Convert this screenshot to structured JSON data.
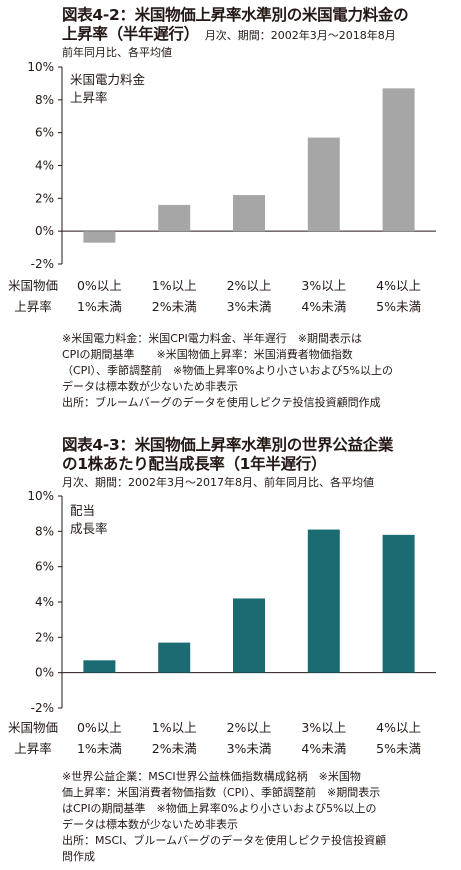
{
  "figures": [
    {
      "title_line1": "図表4-2：米国物価上昇率水準別の米国電力料金の",
      "title_line2": "上昇率（半年遅行）",
      "title_side": "月次、期間：2002年3月～2018年8月",
      "subtitle": "前年同月比、各平均値",
      "notes": [
        "※米国電力料金：米国CPI電力料金、半年遅行　※期間表示は",
        "CPIの期間基準　　※米国物価上昇率：米国消費者物価指数",
        "（CPI）、季節調整前　※物価上昇率0%より小さいおよび5%以上の",
        "データは標本数が少ないため非表示",
        "出所：ブルームバーグのデータを使用しピクテ投信投資顧問作成"
      ]
    },
    {
      "title_line1": "図表4-3：米国物価上昇率水準別の世界公益企業",
      "title_line2": "の1株あたり配当成長率（1年半遅行）",
      "title_side": "",
      "subtitle": "月次、期間：2002年3月～2017年8月、前年同月比、各平均値",
      "notes": [
        "※世界公益企業：MSCI世界公益株価指数構成銘柄　※米国物",
        "価上昇率：米国消費者物価指数（CPI）、季節調整前　※期間表示",
        "はCPIの期間基準　※物価上昇率0%より小さいおよび5%以上の",
        "データは標本数が少ないため非表示",
        "出所：MSCI、ブルームバーグのデータを使用しピクテ投信投資顧",
        "問作成"
      ]
    }
  ],
  "chart_data": [
    {
      "type": "bar",
      "categories": [
        "0%以上\n1%未満",
        "1%以上\n2%未満",
        "2%以上\n3%未満",
        "3%以上\n4%未満",
        "4%以上\n5%未満"
      ],
      "series": [
        {
          "values": [
            -0.7,
            1.6,
            2.2,
            5.7,
            8.7
          ]
        }
      ],
      "ylim": [
        -2,
        10
      ],
      "yticks": [
        -2,
        0,
        2,
        4,
        6,
        8,
        10
      ],
      "ytick_labels": [
        "-2%",
        "0%",
        "2%",
        "4%",
        "6%",
        "8%",
        "10%"
      ],
      "inner_label": [
        "米国電力料金",
        "上昇率"
      ],
      "xlabel": [
        "米国物価",
        "上昇率"
      ],
      "bar_color": "#a6a6a6",
      "grid": false
    },
    {
      "type": "bar",
      "categories": [
        "0%以上\n1%未満",
        "1%以上\n2%未満",
        "2%以上\n3%未満",
        "3%以上\n4%未満",
        "4%以上\n5%未満"
      ],
      "series": [
        {
          "values": [
            0.7,
            1.7,
            4.2,
            8.1,
            7.8
          ]
        }
      ],
      "ylim": [
        -2,
        10
      ],
      "yticks": [
        -2,
        0,
        2,
        4,
        6,
        8,
        10
      ],
      "ytick_labels": [
        "-2%",
        "0%",
        "2%",
        "4%",
        "6%",
        "8%",
        "10%"
      ],
      "inner_label": [
        "配当",
        "成長率"
      ],
      "xlabel": [
        "米国物価",
        "上昇率"
      ],
      "bar_color": "#1a6b72",
      "grid": false
    }
  ]
}
